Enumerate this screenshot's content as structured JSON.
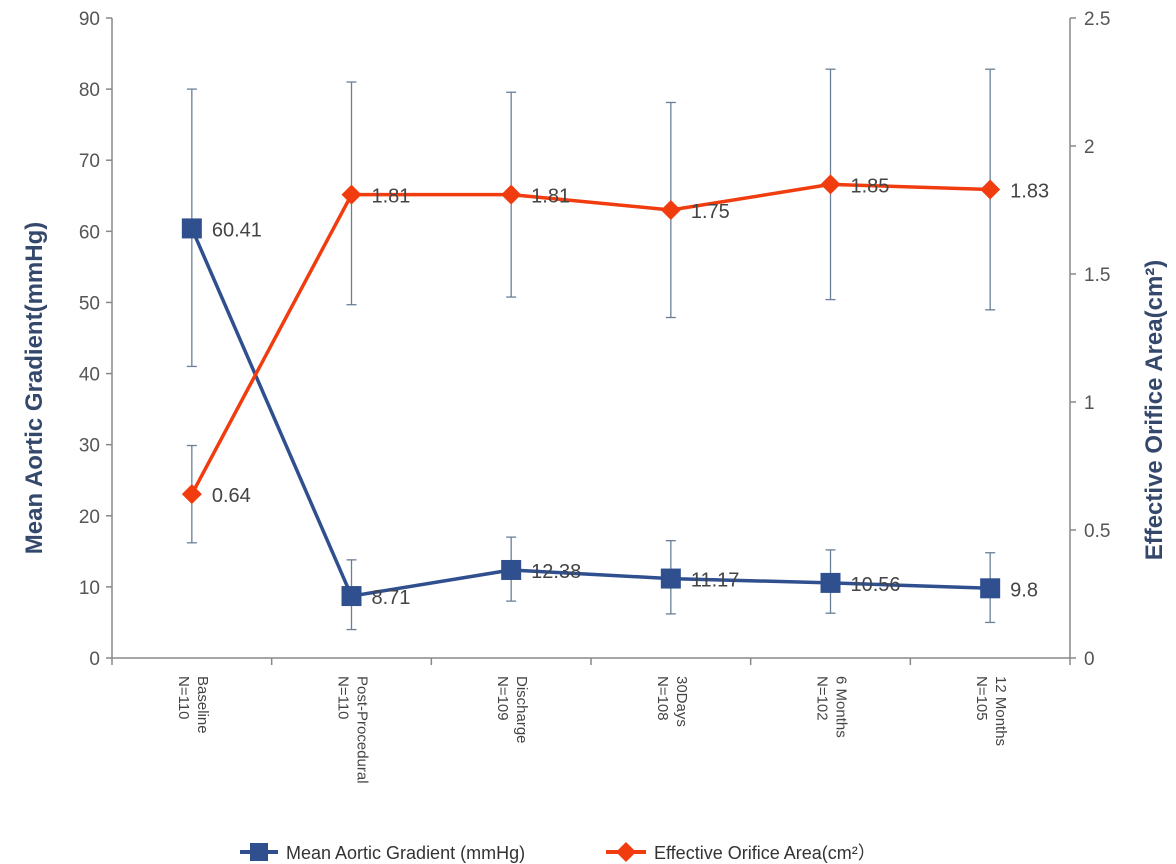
{
  "chart_data": {
    "type": "line",
    "categories": [
      {
        "label": "Baseline",
        "n": "N=110"
      },
      {
        "label": "Post-Procedural",
        "n": "N=110"
      },
      {
        "label": "Discharge",
        "n": "N=109"
      },
      {
        "label": "30Days",
        "n": "N=108"
      },
      {
        "label": "6 Months",
        "n": "N=102"
      },
      {
        "label": "12 Months",
        "n": "N=105"
      }
    ],
    "y_left": {
      "label": "Mean Aortic Gradient(mmHg)",
      "lim": [
        0,
        90
      ],
      "ticks": [
        "0",
        "10",
        "20",
        "30",
        "40",
        "50",
        "60",
        "70",
        "80",
        "90"
      ]
    },
    "y_right": {
      "label": "Effective Orifice Area(cm²)",
      "lim": [
        0,
        2.5
      ],
      "ticks": [
        "0",
        "0.5",
        "1",
        "1.5",
        "2",
        "2.5"
      ]
    },
    "series": [
      {
        "name": "Mean Aortic Gradient (mmHg)",
        "axis": "left",
        "color": "#2f4f8f",
        "marker": "square",
        "values": [
          60.41,
          8.71,
          12.38,
          11.17,
          10.56,
          9.8
        ],
        "labels": [
          "60.41",
          "8.71",
          "12.38",
          "11.17",
          "10.56",
          "9.8"
        ],
        "error_low": [
          41,
          4,
          8,
          6.2,
          6.3,
          5
        ],
        "error_high": [
          80,
          13.8,
          17,
          16.5,
          15.2,
          14.8
        ]
      },
      {
        "name": "Effective Orifice Area(cm²）",
        "axis": "right",
        "color": "#f03c0f",
        "marker": "diamond",
        "values": [
          0.64,
          1.81,
          1.81,
          1.75,
          1.85,
          1.83
        ],
        "labels": [
          "0.64",
          "1.81",
          "1.81",
          "1.75",
          "1.85",
          "1.83"
        ],
        "error_low": [
          0.45,
          1.38,
          1.41,
          1.33,
          1.4,
          1.36
        ],
        "error_high": [
          0.83,
          2.25,
          2.21,
          2.17,
          2.3,
          2.3
        ]
      }
    ],
    "error_bar_color": "#6a7f96",
    "grid": false,
    "legend_position": "bottom"
  }
}
